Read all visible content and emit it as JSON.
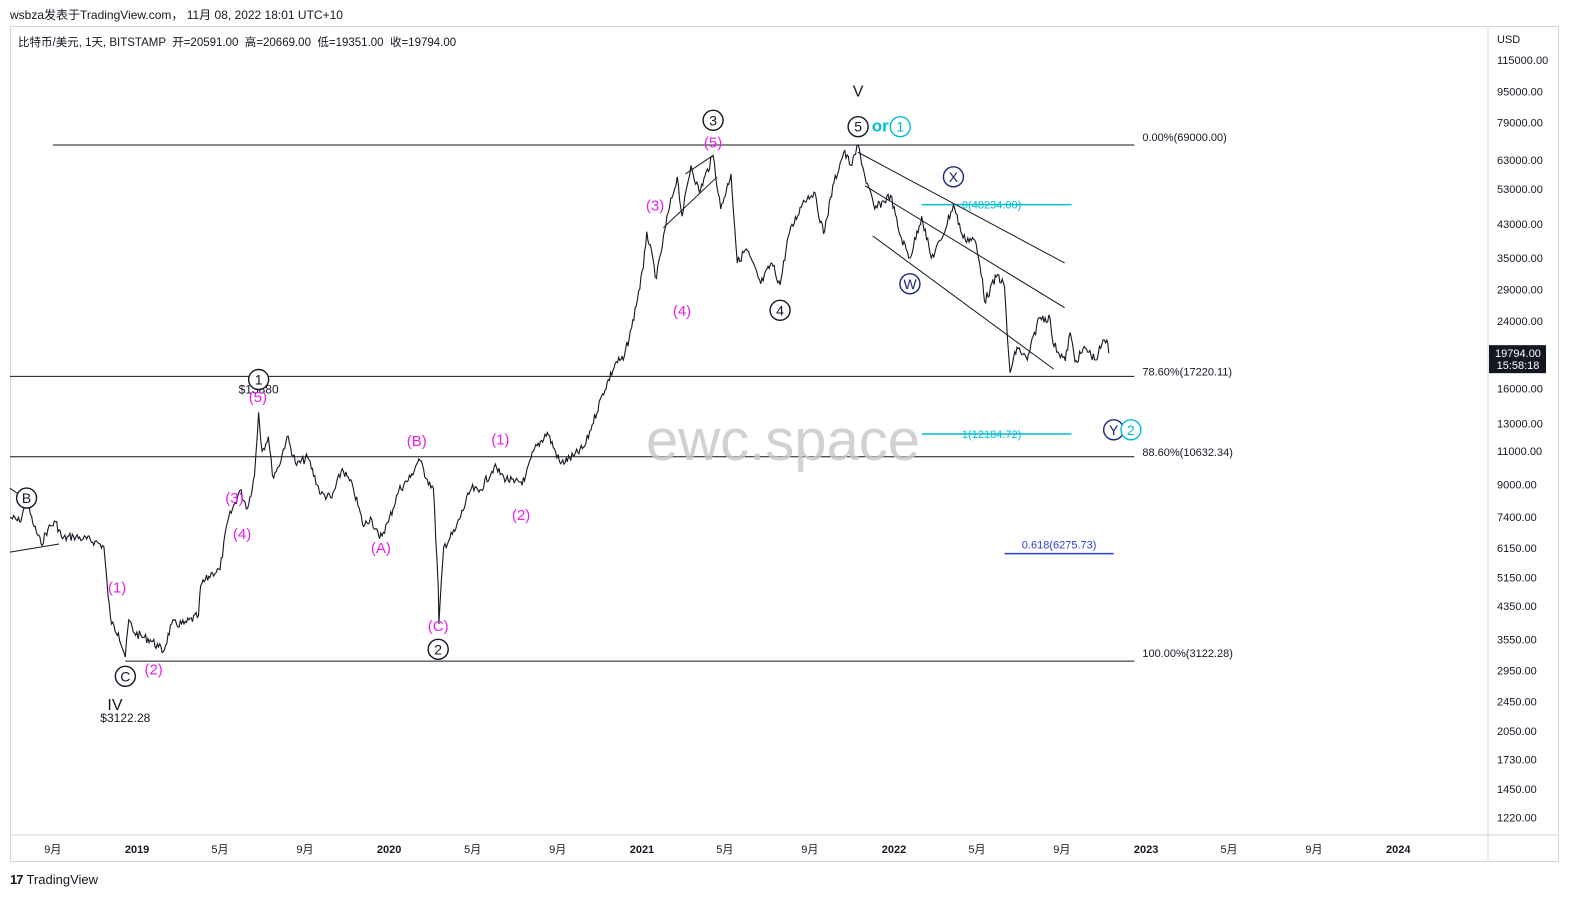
{
  "header": {
    "watermark_line": "wsbza发表于TradingView.com， 11月 08, 2022 18:01 UTC+10"
  },
  "symbol": {
    "name": "比特币/美元, 1天, BITSTAMP",
    "open_label": "开",
    "open": "=20591.00",
    "high_label": "高",
    "high": "=20669.00",
    "low_label": "低",
    "low": "=19351.00",
    "close_label": "收",
    "close": "=19794.00"
  },
  "brand": {
    "logo": "17",
    "name": "TradingView"
  },
  "colors": {
    "candle": "#131722",
    "magenta": "#e91ee9",
    "cyan": "#00bcd4",
    "navy": "#1a237e",
    "blue": "#2b3fd6",
    "fib": "#131722"
  },
  "chart_data": {
    "type": "line",
    "currency": "USD",
    "y_scale": "log",
    "ylim": [
      1100,
      140000
    ],
    "y_ticks": [
      "115000.00",
      "95000.00",
      "79000.00",
      "63000.00",
      "53000.00",
      "43000.00",
      "35000.00",
      "29000.00",
      "24000.00",
      "19794.00",
      "16000.00",
      "13000.00",
      "11000.00",
      "9000.00",
      "7400.00",
      "6150.00",
      "5150.00",
      "4350.00",
      "3550.00",
      "2950.00",
      "2450.00",
      "2050.00",
      "1730.00",
      "1450.00",
      "1220.00"
    ],
    "y_tick_values": [
      115000,
      95000,
      79000,
      63000,
      53000,
      43000,
      35000,
      29000,
      24000,
      16000,
      13000,
      11000,
      9000,
      7400,
      6150,
      5150,
      4350,
      3550,
      2950,
      2450,
      2050,
      1730,
      1450,
      1220
    ],
    "price_tag": {
      "price": "19794.00",
      "countdown": "15:58:18",
      "value": 19794
    },
    "x_ticks": [
      {
        "label": "9月",
        "date": "2018-09-01",
        "bold": false
      },
      {
        "label": "2019",
        "date": "2019-01-01",
        "bold": true
      },
      {
        "label": "5月",
        "date": "2019-05-01",
        "bold": false
      },
      {
        "label": "9月",
        "date": "2019-09-01",
        "bold": false
      },
      {
        "label": "2020",
        "date": "2020-01-01",
        "bold": true
      },
      {
        "label": "5月",
        "date": "2020-05-01",
        "bold": false
      },
      {
        "label": "9月",
        "date": "2020-09-01",
        "bold": false
      },
      {
        "label": "2021",
        "date": "2021-01-01",
        "bold": true
      },
      {
        "label": "5月",
        "date": "2021-05-01",
        "bold": false
      },
      {
        "label": "9月",
        "date": "2021-09-01",
        "bold": false
      },
      {
        "label": "2022",
        "date": "2022-01-01",
        "bold": true
      },
      {
        "label": "5月",
        "date": "2022-05-01",
        "bold": false
      },
      {
        "label": "9月",
        "date": "2022-09-01",
        "bold": false
      },
      {
        "label": "2023",
        "date": "2023-01-01",
        "bold": true
      },
      {
        "label": "5月",
        "date": "2023-05-01",
        "bold": false
      },
      {
        "label": "9月",
        "date": "2023-09-01",
        "bold": false
      },
      {
        "label": "2024",
        "date": "2024-01-01",
        "bold": true
      }
    ],
    "series": [
      {
        "points": [
          [
            "2018-07-01",
            7400
          ],
          [
            "2018-07-15",
            7200
          ],
          [
            "2018-07-25",
            8100
          ],
          [
            "2018-08-05",
            7000
          ],
          [
            "2018-08-15",
            6300
          ],
          [
            "2018-08-25",
            6900
          ],
          [
            "2018-09-05",
            7200
          ],
          [
            "2018-09-15",
            6500
          ],
          [
            "2018-10-01",
            6600
          ],
          [
            "2018-10-15",
            6500
          ],
          [
            "2018-11-01",
            6400
          ],
          [
            "2018-11-14",
            6200
          ],
          [
            "2018-11-20",
            4600
          ],
          [
            "2018-11-25",
            3900
          ],
          [
            "2018-12-05",
            3700
          ],
          [
            "2018-12-15",
            3200
          ],
          [
            "2018-12-20",
            4000
          ],
          [
            "2018-12-28",
            3700
          ],
          [
            "2019-01-10",
            3600
          ],
          [
            "2019-01-20",
            3550
          ],
          [
            "2019-02-01",
            3400
          ],
          [
            "2019-02-08",
            3300
          ],
          [
            "2019-02-20",
            3900
          ],
          [
            "2019-03-10",
            3900
          ],
          [
            "2019-03-31",
            4100
          ],
          [
            "2019-04-03",
            4900
          ],
          [
            "2019-04-20",
            5300
          ],
          [
            "2019-05-01",
            5400
          ],
          [
            "2019-05-12",
            7200
          ],
          [
            "2019-05-30",
            8700
          ],
          [
            "2019-06-10",
            7800
          ],
          [
            "2019-06-20",
            9500
          ],
          [
            "2019-06-26",
            13880
          ],
          [
            "2019-07-01",
            11000
          ],
          [
            "2019-07-10",
            12000
          ],
          [
            "2019-07-16",
            9500
          ],
          [
            "2019-07-25",
            10000
          ],
          [
            "2019-08-06",
            12000
          ],
          [
            "2019-08-20",
            10100
          ],
          [
            "2019-09-05",
            10600
          ],
          [
            "2019-09-24",
            8500
          ],
          [
            "2019-10-10",
            8300
          ],
          [
            "2019-10-25",
            9900
          ],
          [
            "2019-11-10",
            8800
          ],
          [
            "2019-11-25",
            7000
          ],
          [
            "2019-12-05",
            7400
          ],
          [
            "2019-12-18",
            6500
          ],
          [
            "2019-12-31",
            7200
          ],
          [
            "2020-01-15",
            8700
          ],
          [
            "2020-02-01",
            9400
          ],
          [
            "2020-02-13",
            10500
          ],
          [
            "2020-02-25",
            9300
          ],
          [
            "2020-03-05",
            8800
          ],
          [
            "2020-03-12",
            4900
          ],
          [
            "2020-03-13",
            3900
          ],
          [
            "2020-03-20",
            6200
          ],
          [
            "2020-04-05",
            6800
          ],
          [
            "2020-04-29",
            8800
          ],
          [
            "2020-05-10",
            8600
          ],
          [
            "2020-06-01",
            10000
          ],
          [
            "2020-06-15",
            9400
          ],
          [
            "2020-06-30",
            9100
          ],
          [
            "2020-07-15",
            9200
          ],
          [
            "2020-07-28",
            11000
          ],
          [
            "2020-08-17",
            12300
          ],
          [
            "2020-09-05",
            10200
          ],
          [
            "2020-09-25",
            10700
          ],
          [
            "2020-10-10",
            11300
          ],
          [
            "2020-10-21",
            12900
          ],
          [
            "2020-11-05",
            15500
          ],
          [
            "2020-11-25",
            18800
          ],
          [
            "2020-12-05",
            19000
          ],
          [
            "2020-12-17",
            23000
          ],
          [
            "2021-01-03",
            33000
          ],
          [
            "2021-01-08",
            41000
          ],
          [
            "2021-01-22",
            31000
          ],
          [
            "2021-02-08",
            46000
          ],
          [
            "2021-02-21",
            57000
          ],
          [
            "2021-02-28",
            45000
          ],
          [
            "2021-03-13",
            61000
          ],
          [
            "2021-03-25",
            52000
          ],
          [
            "2021-04-14",
            64800
          ],
          [
            "2021-04-25",
            47000
          ],
          [
            "2021-05-10",
            58000
          ],
          [
            "2021-05-19",
            34000
          ],
          [
            "2021-06-01",
            37000
          ],
          [
            "2021-06-22",
            30000
          ],
          [
            "2021-07-08",
            34000
          ],
          [
            "2021-07-20",
            29800
          ],
          [
            "2021-08-01",
            40000
          ],
          [
            "2021-08-23",
            49500
          ],
          [
            "2021-09-07",
            52000
          ],
          [
            "2021-09-21",
            40500
          ],
          [
            "2021-10-06",
            55000
          ],
          [
            "2021-10-20",
            66000
          ],
          [
            "2021-11-01",
            61000
          ],
          [
            "2021-11-10",
            69000
          ],
          [
            "2021-11-20",
            57000
          ],
          [
            "2021-12-04",
            47000
          ],
          [
            "2021-12-27",
            51000
          ],
          [
            "2022-01-10",
            40000
          ],
          [
            "2022-01-24",
            35000
          ],
          [
            "2022-02-10",
            45000
          ],
          [
            "2022-02-24",
            35000
          ],
          [
            "2022-03-10",
            39000
          ],
          [
            "2022-03-28",
            48200
          ],
          [
            "2022-04-11",
            39500
          ],
          [
            "2022-04-28",
            39000
          ],
          [
            "2022-05-09",
            31000
          ],
          [
            "2022-05-12",
            27000
          ],
          [
            "2022-05-31",
            31700
          ],
          [
            "2022-06-10",
            29500
          ],
          [
            "2022-06-14",
            22000
          ],
          [
            "2022-06-18",
            17600
          ],
          [
            "2022-06-28",
            20500
          ],
          [
            "2022-07-13",
            19000
          ],
          [
            "2022-07-30",
            24500
          ],
          [
            "2022-08-15",
            24400
          ],
          [
            "2022-08-19",
            21000
          ],
          [
            "2022-09-06",
            18900
          ],
          [
            "2022-09-13",
            22400
          ],
          [
            "2022-09-20",
            18800
          ],
          [
            "2022-10-05",
            20400
          ],
          [
            "2022-10-20",
            19000
          ],
          [
            "2022-10-29",
            20900
          ],
          [
            "2022-11-05",
            21400
          ],
          [
            "2022-11-08",
            19794
          ]
        ]
      }
    ],
    "fib_levels": [
      {
        "label": "0.00%(69000.00)",
        "price": 69000,
        "from": "2018-09-01",
        "to": "2022-12-15"
      },
      {
        "label": "78.60%(17220.11)",
        "price": 17220.11,
        "from": "2018-07-01",
        "to": "2022-12-15"
      },
      {
        "label": "88.60%(10632.34)",
        "price": 10632.34,
        "from": "2018-07-01",
        "to": "2022-12-15"
      },
      {
        "label": "100.00%(3122.28)",
        "price": 3122.28,
        "from": "2018-12-15",
        "to": "2022-12-15"
      }
    ],
    "cyan_levels": [
      {
        "label": "0(48234.00)",
        "price": 48234,
        "from": "2022-02-10",
        "to": "2022-09-15"
      },
      {
        "label": "1(12184.72)",
        "price": 12184.72,
        "from": "2022-02-10",
        "to": "2022-09-15"
      }
    ],
    "blue_level": {
      "label": "0.618(6275.73)",
      "price": 6275.73,
      "from": "2022-06-10",
      "to": "2022-11-15"
    },
    "price_labels": [
      {
        "text": "$13880",
        "date": "2019-06-26",
        "price": 13880
      },
      {
        "text": "$3122.28",
        "date": "2018-12-15",
        "price": 3122.28
      }
    ],
    "wave_labels": [
      {
        "text": "(1)",
        "date": "2018-12-03",
        "price": 4850,
        "color": "magenta",
        "circle": false
      },
      {
        "text": "(2)",
        "date": "2019-01-25",
        "price": 2970,
        "color": "magenta",
        "circle": false
      },
      {
        "text": "(3)",
        "date": "2019-05-22",
        "price": 8300,
        "color": "magenta",
        "circle": false
      },
      {
        "text": "(4)",
        "date": "2019-06-02",
        "price": 6700,
        "color": "magenta",
        "circle": false
      },
      {
        "text": "(5)",
        "date": "2019-06-25",
        "price": 15200,
        "color": "magenta",
        "circle": false
      },
      {
        "text": "(A)",
        "date": "2019-12-20",
        "price": 6150,
        "color": "magenta",
        "circle": false
      },
      {
        "text": "(B)",
        "date": "2020-02-10",
        "price": 11700,
        "color": "magenta",
        "circle": false
      },
      {
        "text": "(C)",
        "date": "2020-03-12",
        "price": 3850,
        "color": "magenta",
        "circle": false
      },
      {
        "text": "(1)",
        "date": "2020-06-10",
        "price": 11800,
        "color": "magenta",
        "circle": false
      },
      {
        "text": "(2)",
        "date": "2020-07-10",
        "price": 7500,
        "color": "magenta",
        "circle": false
      },
      {
        "text": "(3)",
        "date": "2021-01-20",
        "price": 48000,
        "color": "magenta",
        "circle": false
      },
      {
        "text": "(4)",
        "date": "2021-02-28",
        "price": 25500,
        "color": "magenta",
        "circle": false
      },
      {
        "text": "(5)",
        "date": "2021-04-14",
        "price": 70000,
        "color": "magenta",
        "circle": false
      },
      {
        "text": "3",
        "date": "2021-04-14",
        "price": 80000,
        "color": "black",
        "circle": true
      },
      {
        "text": "1",
        "date": "2019-06-26",
        "price": 16900,
        "color": "black",
        "circle": true
      },
      {
        "text": "2",
        "date": "2020-03-12",
        "price": 3350,
        "color": "black",
        "circle": true
      },
      {
        "text": "C",
        "date": "2018-12-15",
        "price": 2850,
        "color": "black",
        "circle": true
      },
      {
        "text": "B",
        "date": "2018-07-25",
        "price": 8300,
        "color": "black",
        "circle": true
      },
      {
        "text": "4",
        "date": "2021-07-20",
        "price": 25600,
        "color": "black",
        "circle": true
      },
      {
        "text": "5",
        "date": "2021-11-10",
        "price": 77000,
        "color": "black",
        "circle": true
      },
      {
        "text": "X",
        "date": "2022-03-28",
        "price": 57000,
        "color": "navy",
        "circle": true
      },
      {
        "text": "W",
        "date": "2022-01-24",
        "price": 30000,
        "color": "navy",
        "circle": true
      },
      {
        "text": "Y",
        "date": "2022-11-15",
        "price": 12500,
        "color": "navy",
        "circle": true
      },
      {
        "text": "2",
        "date": "2022-12-10",
        "price": 12500,
        "color": "cyan",
        "circle": true
      },
      {
        "text": "1",
        "date": "2022-01-10",
        "price": 77000,
        "color": "cyan",
        "circle": true
      },
      {
        "text": "or",
        "date": "2021-12-12",
        "price": 77000,
        "color": "cyan",
        "circle": false
      },
      {
        "text": "V",
        "date": "2021-11-10",
        "price": 95000,
        "color": "black",
        "circle": false
      },
      {
        "text": "IV",
        "date": "2018-11-30",
        "price": 2400,
        "color": "black",
        "circle": false
      }
    ],
    "watermark": "ewc.space"
  }
}
